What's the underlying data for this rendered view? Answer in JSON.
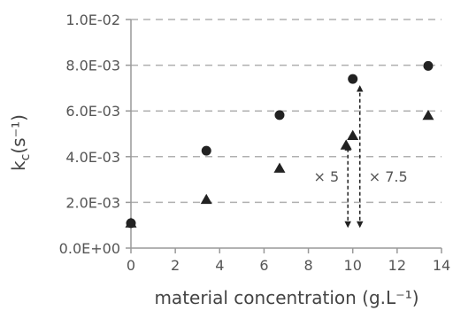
{
  "chart_data": {
    "type": "scatter",
    "xlabel": "material concentration (g.L⁻¹)",
    "ylabel_main": "k",
    "ylabel_sub": "c",
    "ylabel_unit": "(s⁻¹)",
    "xlim": [
      0,
      14
    ],
    "ylim": [
      0,
      0.01
    ],
    "x_ticks": [
      0,
      2,
      4,
      6,
      8,
      10,
      12,
      14
    ],
    "x_tick_labels": [
      "0",
      "2",
      "4",
      "6",
      "8",
      "10",
      "12",
      "14"
    ],
    "y_ticks": [
      0,
      0.002,
      0.004,
      0.006,
      0.008,
      0.01
    ],
    "y_tick_labels": [
      "0.0E+00",
      "2.0E-03",
      "4.0E-03",
      "6.0E-03",
      "8.0E-03",
      "1.0E-02"
    ],
    "grid": "horizontal dashed",
    "series": [
      {
        "marker": "circle",
        "x": [
          0,
          3.4,
          6.7,
          10.0,
          13.4
        ],
        "y": [
          0.00109,
          0.00426,
          0.00582,
          0.0074,
          0.00797
        ]
      },
      {
        "marker": "triangle",
        "x": [
          0,
          3.4,
          6.7,
          9.7,
          10.0,
          13.4
        ],
        "y": [
          0.00109,
          0.00212,
          0.00349,
          0.0045,
          0.00492,
          0.0058
        ]
      }
    ],
    "annotations": [
      {
        "text": "× 5",
        "from": 0.00094,
        "to": 0.0045,
        "x": 9.78
      },
      {
        "text": "× 7.5",
        "from": 0.00094,
        "to": 0.00707,
        "x": 10.32
      }
    ],
    "colors": {
      "marker": "#222222",
      "grid": "#b0b0b0",
      "axis": "#999999",
      "text": "#555555"
    }
  }
}
